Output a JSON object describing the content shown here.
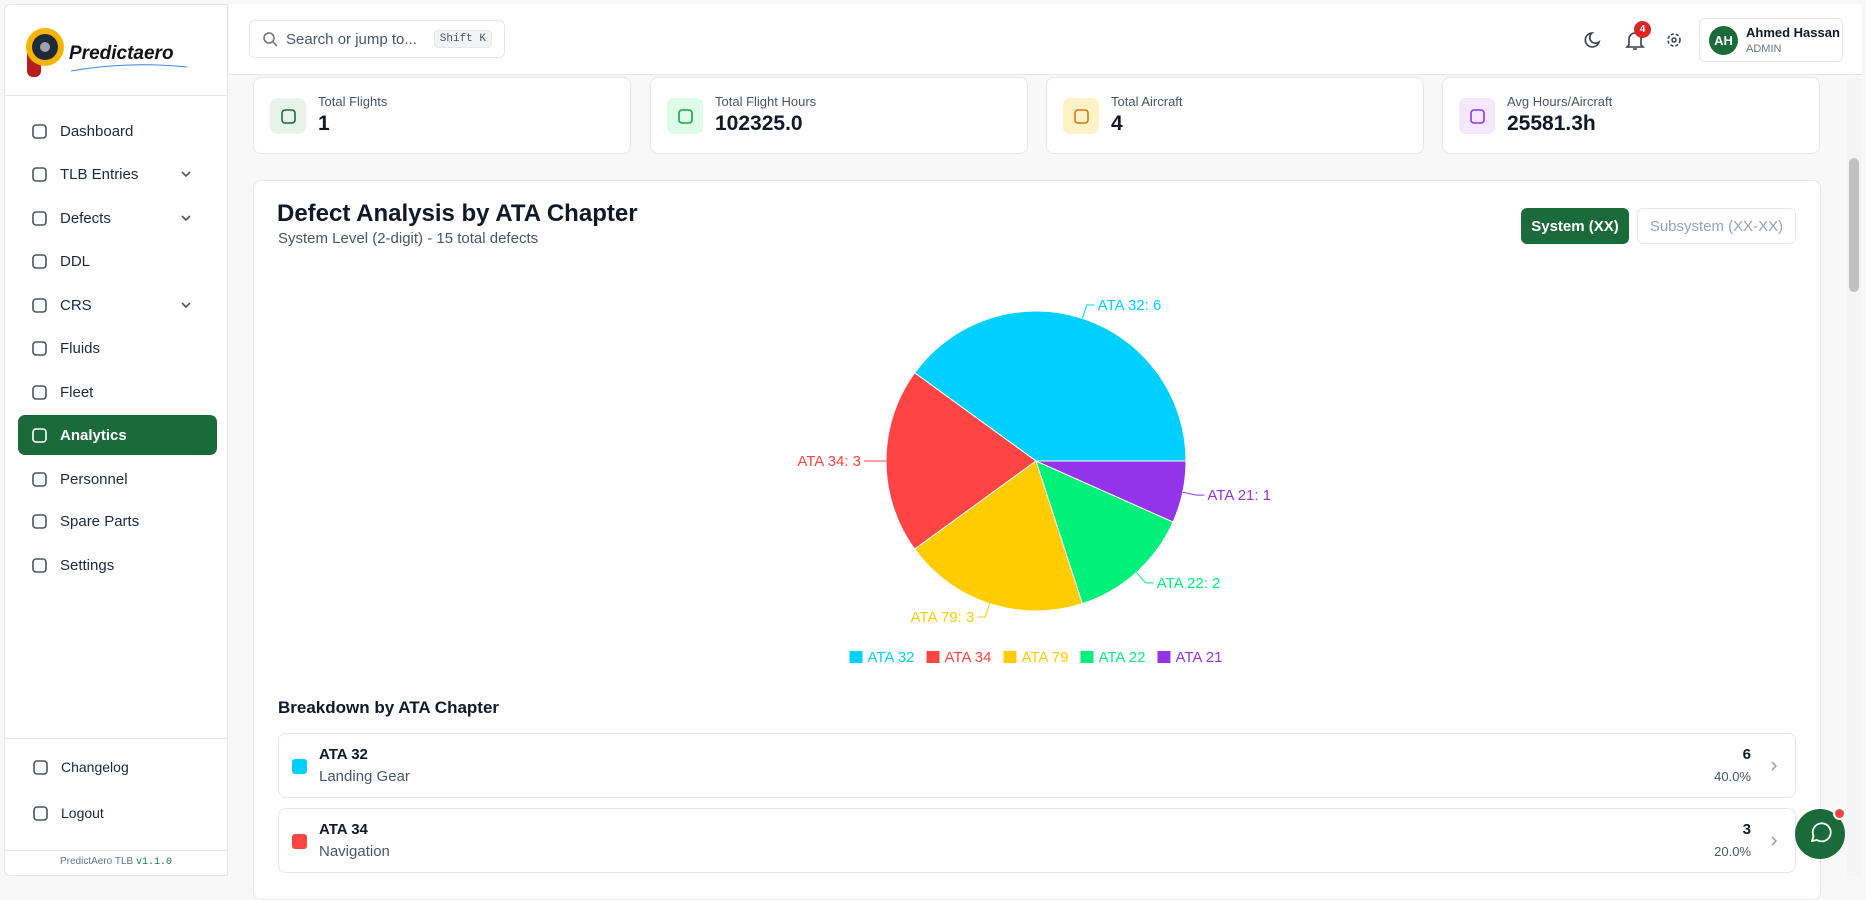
{
  "sidebar": {
    "brand": "Predictaero",
    "nav": [
      "Dashboard",
      "TLB Entries",
      "Defects",
      "DDL",
      "CRS",
      "Fluids",
      "Fleet",
      "Analytics",
      "Personnel",
      "Spare Parts",
      "Settings"
    ],
    "footer": [
      "Changelog",
      "Logout"
    ],
    "version_name": "PredictAero TLB",
    "version": "v1.1.0"
  },
  "header": {
    "search_placeholder": "Search or jump to...",
    "shortcut": [
      "Shift",
      "K"
    ],
    "notifications": "4",
    "user": {
      "initials": "AH",
      "name": "Ahmed Hassan",
      "role": "ADMIN"
    }
  },
  "stats": [
    {
      "label": "Total Flights",
      "value": "1"
    },
    {
      "label": "Total Flight Hours",
      "value": "102325.0"
    },
    {
      "label": "Total Aircraft",
      "value": "4"
    },
    {
      "label": "Avg Hours/Aircraft",
      "value": "25581.3h"
    }
  ],
  "controls": [
    "System (XX)",
    "Subsystem (XX-XX)"
  ],
  "chart_data": {
    "type": "pie",
    "title": "Defect Analysis by ATA Chapter",
    "subtitle": "System Level (2-digit) - 15 total defects",
    "categories": [
      "ATA 32",
      "ATA 34",
      "ATA 79",
      "ATA 22",
      "ATA 21"
    ],
    "values": [
      6,
      3,
      3,
      2,
      1
    ],
    "value_labels": [
      "ATA 32: 6",
      "ATA 34: 3",
      "ATA 79: 3",
      "ATA 22: 2",
      "ATA 21: 1"
    ],
    "colors": [
      "#00d0ff",
      "#ff4444",
      "#ffcc00",
      "#00f07a",
      "#9333ea"
    ]
  },
  "breakdown": {
    "title": "Breakdown by ATA Chapter",
    "rows": [
      {
        "code": "ATA 32",
        "name": "Landing Gear",
        "count": "6",
        "share": "40.0%"
      },
      {
        "code": "ATA 34",
        "name": "Navigation",
        "count": "3",
        "share": "20.0%"
      }
    ]
  }
}
